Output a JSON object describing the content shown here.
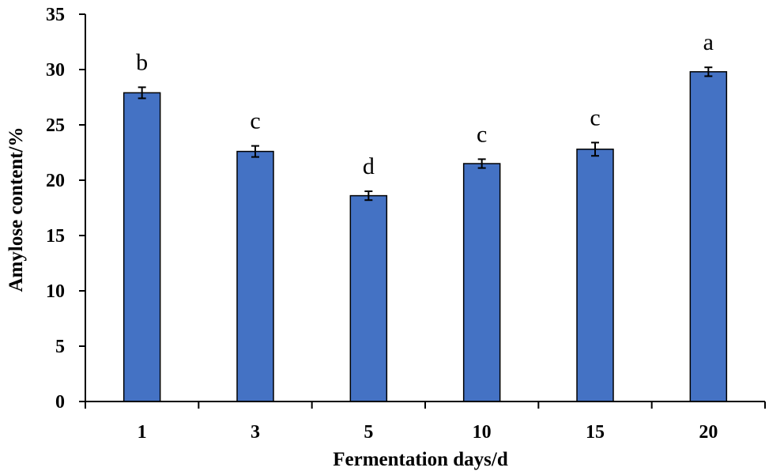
{
  "chart_data": {
    "type": "bar",
    "title": "",
    "xlabel": "Fermentation days/d",
    "ylabel": "Amylose content/%",
    "categories": [
      "1",
      "3",
      "5",
      "10",
      "15",
      "20"
    ],
    "values": [
      27.9,
      22.6,
      18.6,
      21.5,
      22.8,
      29.8
    ],
    "errors": [
      0.5,
      0.5,
      0.4,
      0.4,
      0.6,
      0.4
    ],
    "significance": [
      "b",
      "c",
      "d",
      "c",
      "c",
      "a"
    ],
    "ylim": [
      0,
      35
    ],
    "yticks": [
      0,
      5,
      10,
      15,
      20,
      25,
      30,
      35
    ],
    "grid": false,
    "legend": "none",
    "bar_color": "#4472C4"
  }
}
